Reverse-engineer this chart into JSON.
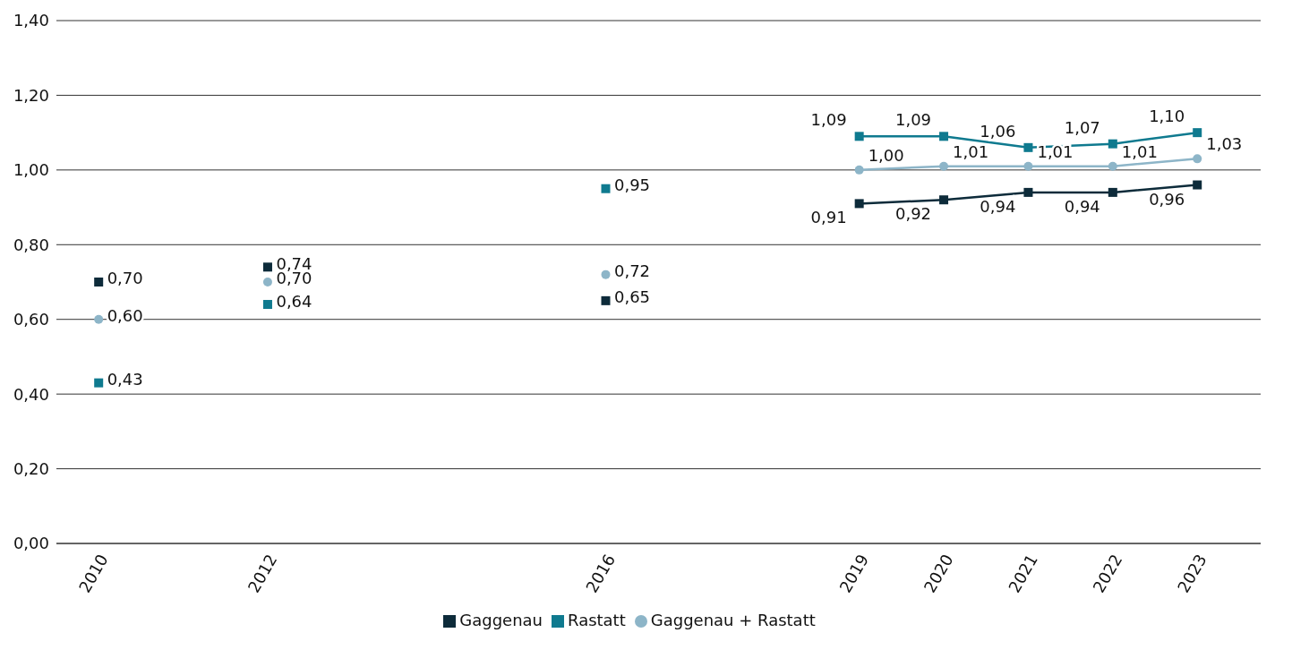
{
  "chart_data": {
    "type": "line",
    "xlim": [
      2009.5,
      2023.75
    ],
    "xticks": [
      2010,
      2012,
      2016,
      2019,
      2020,
      2021,
      2022,
      2023
    ],
    "ylim": [
      0,
      1.4
    ],
    "yticks": [
      {
        "value": 0,
        "label": "0,00"
      },
      {
        "value": 0.2,
        "label": "0,20"
      },
      {
        "value": 0.4,
        "label": "0,40"
      },
      {
        "value": 0.6,
        "label": "0,60"
      },
      {
        "value": 0.8,
        "label": "0,80"
      },
      {
        "value": 1,
        "label": "1,00"
      },
      {
        "value": 1.2,
        "label": "1,20"
      },
      {
        "value": 1.4,
        "label": "1,40"
      }
    ],
    "grid": "y",
    "legend": "bottom",
    "series": [
      {
        "name": "Gaggenau",
        "marker": "square",
        "color": "#0d2b3a",
        "x": [
          2019,
          2020,
          2021,
          2022,
          2023
        ],
        "values": [
          0.91,
          0.92,
          0.94,
          0.94,
          0.96
        ],
        "value_labels": [
          "0,91",
          "0,92",
          "0,94",
          "0,94",
          "0,96"
        ]
      },
      {
        "name": "Rastatt",
        "marker": "square",
        "color": "#0f7a8f",
        "x": [
          2019,
          2020,
          2021,
          2022,
          2023
        ],
        "values": [
          1.09,
          1.09,
          1.06,
          1.07,
          1.1
        ],
        "value_labels": [
          "1,09",
          "1,09",
          "1,06",
          "1,07",
          "1,10"
        ]
      },
      {
        "name": "Gaggenau + Rastatt",
        "marker": "circle",
        "color": "#8db5c8",
        "x": [
          2019,
          2020,
          2021,
          2022,
          2023
        ],
        "values": [
          1.0,
          1.01,
          1.01,
          1.01,
          1.03
        ],
        "value_labels": [
          "1,00",
          "1,01",
          "1,01",
          "1,01",
          "1,03"
        ]
      },
      {
        "type": "scatter",
        "marker": "square",
        "color": "#0d2b3a",
        "x": [
          2010,
          2012,
          2016
        ],
        "values": [
          0.7,
          0.74,
          0.65
        ],
        "value_labels": [
          "0,70",
          "0,74",
          "0,65"
        ]
      },
      {
        "type": "scatter",
        "marker": "square",
        "color": "#0f7a8f",
        "x": [
          2010,
          2012,
          2016
        ],
        "values": [
          0.43,
          0.64,
          0.95
        ],
        "value_labels": [
          "0,43",
          "0,64",
          "0,95"
        ]
      },
      {
        "type": "scatter",
        "marker": "circle",
        "color": "#8db5c8",
        "x": [
          2010,
          2012,
          2016
        ],
        "values": [
          0.6,
          0.7,
          0.72
        ],
        "value_labels": [
          "0,60",
          "0,70",
          "0,72"
        ]
      }
    ]
  }
}
